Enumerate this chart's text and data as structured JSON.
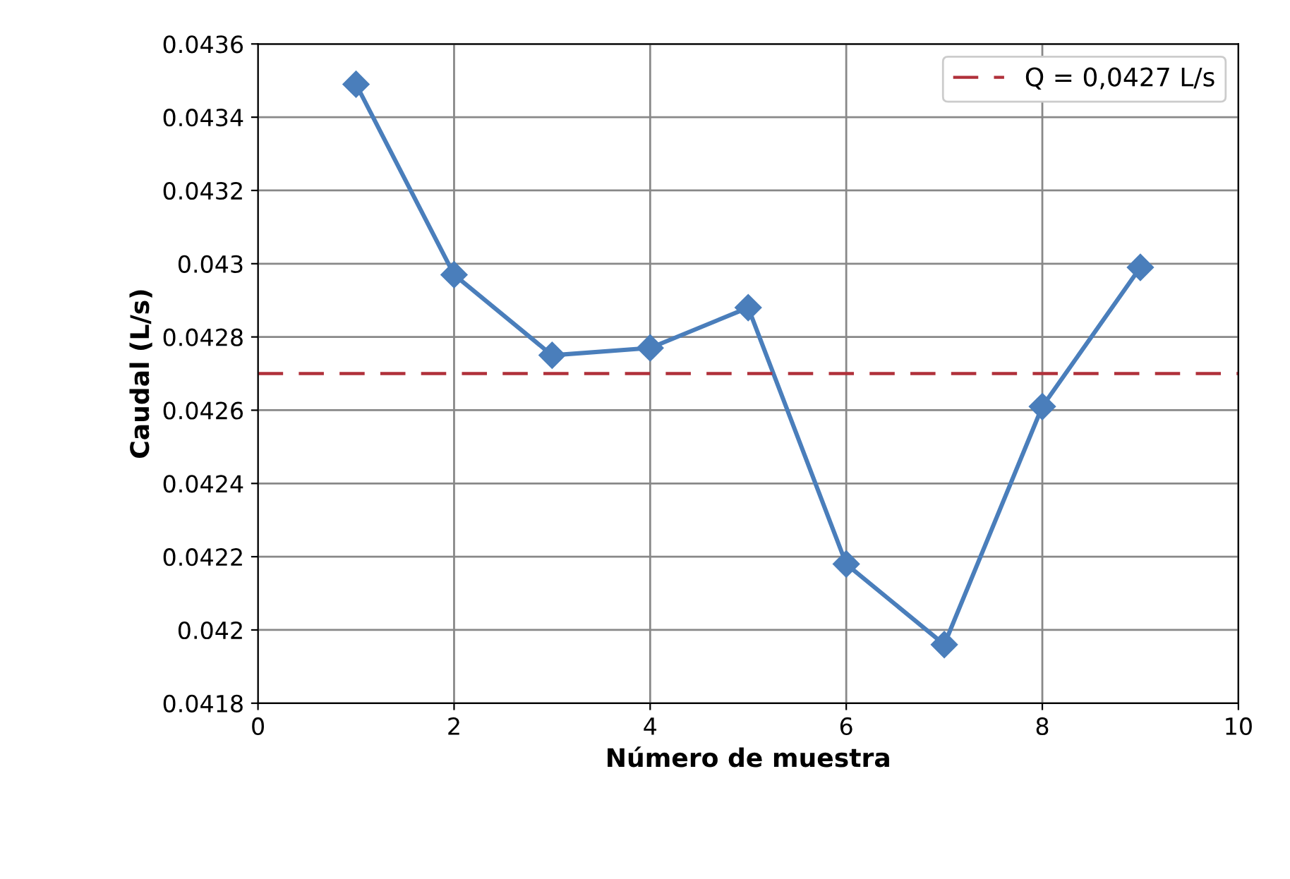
{
  "chart_data": {
    "type": "line",
    "xlabel": "Número de muestra",
    "ylabel": "Caudal (L/s)",
    "x": [
      1,
      2,
      3,
      4,
      5,
      6,
      7,
      8,
      9
    ],
    "series": [
      {
        "color": "#4a7ebb",
        "values": [
          0.04349,
          0.04297,
          0.04275,
          0.04277,
          0.04288,
          0.04218,
          0.04196,
          0.04261,
          0.04299
        ]
      }
    ],
    "xlim": [
      0,
      10
    ],
    "xticks": [
      0,
      2,
      4,
      6,
      8,
      10
    ],
    "ylim": [
      0.0418,
      0.0436
    ],
    "yticks": [
      0.0418,
      0.042,
      0.0422,
      0.0424,
      0.0426,
      0.0428,
      0.043,
      0.0432,
      0.0434,
      0.0436
    ],
    "ref_lines": [
      {
        "axis": "y",
        "value": 0.0427,
        "label": "Q = 0,0427 L/s",
        "color": "#b0303a",
        "line_style": "dashed"
      }
    ],
    "grid": true,
    "legend": "top right",
    "marker": "diamond"
  }
}
